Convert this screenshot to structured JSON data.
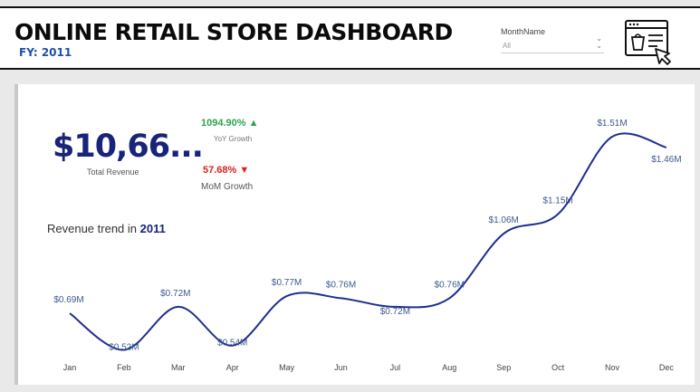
{
  "header": {
    "title": "ONLINE RETAIL STORE DASHBOARD",
    "fy": "FY: 2011"
  },
  "slicer": {
    "label": "MonthName",
    "value": "All"
  },
  "icons": {
    "chevron": "chevron-down-icon",
    "store": "online-store-icon",
    "up": "triangle-up-icon",
    "down": "triangle-down-icon"
  },
  "kpi": {
    "total_revenue": "$10,66...",
    "total_revenue_label": "Total Revenue",
    "yoy_value": "1094.90%",
    "yoy_label": "YoY Growth",
    "mom_value": "57.68%",
    "mom_label": "MoM Growth"
  },
  "trend": {
    "title_prefix": "Revenue trend in ",
    "title_year": "2011"
  },
  "colors": {
    "line": "#1f2d8f",
    "kpi_main": "#18237a",
    "yoy": "#2da44e",
    "mom": "#e0201b"
  },
  "chart_data": {
    "type": "line",
    "categories": [
      "Jan",
      "Feb",
      "Mar",
      "Apr",
      "May",
      "Jun",
      "Jul",
      "Aug",
      "Sep",
      "Oct",
      "Nov",
      "Dec"
    ],
    "values": [
      0.69,
      0.52,
      0.72,
      0.54,
      0.77,
      0.76,
      0.72,
      0.76,
      1.06,
      1.15,
      1.51,
      1.46
    ],
    "labels": [
      "$0.69M",
      "$0.52M",
      "$0.72M",
      "$0.54M",
      "$0.77M",
      "$0.76M",
      "$0.72M",
      "$0.76M",
      "$1.06M",
      "$1.15M",
      "$1.51M",
      "$1.46M"
    ],
    "unit": "$M",
    "grid": false
  }
}
